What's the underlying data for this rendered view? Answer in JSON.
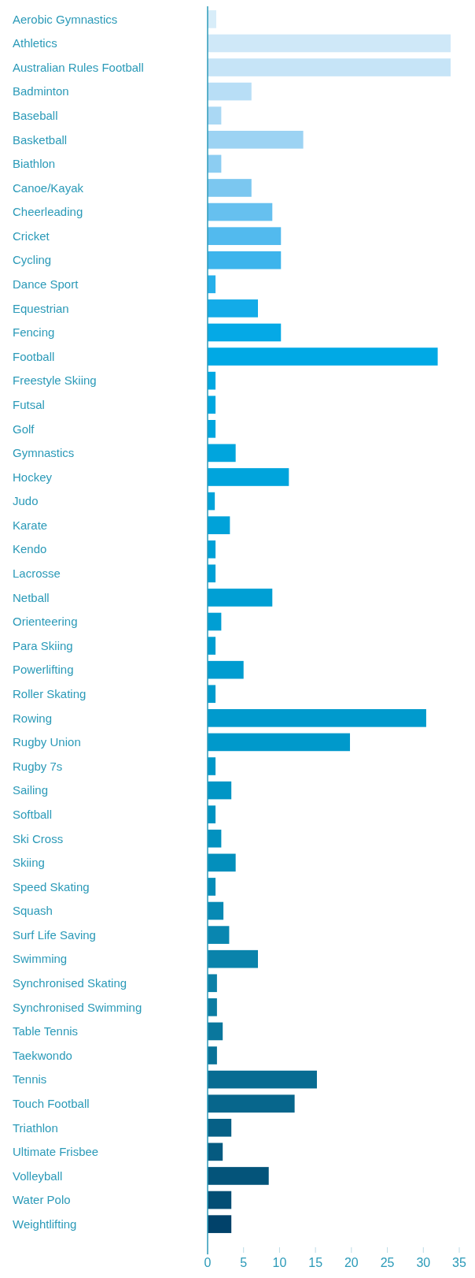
{
  "chart_data": {
    "type": "bar",
    "orientation": "horizontal",
    "categories": [
      "Aerobic Gymnastics",
      "Athletics",
      "Australian Rules Football",
      "Badminton",
      "Baseball",
      "Basketball",
      "Biathlon",
      "Canoe/Kayak",
      "Cheerleading",
      "Cricket",
      "Cycling",
      "Dance Sport",
      "Equestrian",
      "Fencing",
      "Football",
      "Freestyle Skiing",
      "Futsal",
      "Golf",
      "Gymnastics",
      "Hockey",
      "Judo",
      "Karate",
      "Kendo",
      "Lacrosse",
      "Netball",
      "Orienteering",
      "Para Skiing",
      "Powerlifting",
      "Roller Skating",
      "Rowing",
      "Rugby Union",
      "Rugby 7s",
      "Sailing",
      "Softball",
      "Ski Cross",
      "Skiing",
      "Speed Skating",
      "Squash",
      "Surf Life Saving",
      "Swimming",
      "Synchronised Skating",
      "Synchronised Swimming",
      "Table Tennis",
      "Taekwondo",
      "Tennis",
      "Touch Football",
      "Triathlon",
      "Ultimate Frisbee",
      "Volleyball",
      "Water Polo",
      "Weightlifting"
    ],
    "values": [
      1.2,
      33.8,
      33.8,
      6.1,
      1.9,
      13.3,
      1.9,
      6.1,
      9.0,
      10.2,
      10.2,
      1.1,
      7.0,
      10.2,
      32.0,
      1.1,
      1.1,
      1.1,
      3.9,
      11.3,
      1.0,
      3.1,
      1.1,
      1.1,
      9.0,
      1.9,
      1.1,
      5.0,
      1.1,
      30.4,
      19.8,
      1.1,
      3.3,
      1.1,
      1.9,
      3.9,
      1.1,
      2.2,
      3.0,
      7.0,
      1.3,
      1.3,
      2.1,
      1.3,
      15.2,
      12.1,
      3.3,
      2.1,
      8.5,
      3.3,
      3.3
    ],
    "colors": [
      "#d8edf9",
      "#cfe8f8",
      "#c6e4f7",
      "#b8def6",
      "#aad8f4",
      "#9cd3f3",
      "#8ccdf2",
      "#7bc7f0",
      "#66c0ef",
      "#52baee",
      "#3db4ec",
      "#26afea",
      "#12abe8",
      "#05a9e6",
      "#00a9e5",
      "#00a8e2",
      "#00a7e0",
      "#00a6df",
      "#00a5dd",
      "#00a4dc",
      "#00a3da",
      "#00a2d9",
      "#00a1d7",
      "#00a0d6",
      "#009fd4",
      "#009ed3",
      "#009dd1",
      "#009cd0",
      "#009bce",
      "#009acd",
      "#0099cb",
      "#0097c8",
      "#0095c5",
      "#0093c2",
      "#0291bf",
      "#038fbc",
      "#058cb8",
      "#0789b4",
      "#0986b0",
      "#0a83ab",
      "#0b80a7",
      "#0b7ca2",
      "#0a779d",
      "#097298",
      "#086c92",
      "#07668c",
      "#066086",
      "#055a80",
      "#04547a",
      "#034e74",
      "#01426a"
    ],
    "xlim": [
      0,
      35
    ],
    "xticks": [
      0,
      5,
      10,
      15,
      20,
      25,
      30,
      35
    ],
    "grid": false
  }
}
